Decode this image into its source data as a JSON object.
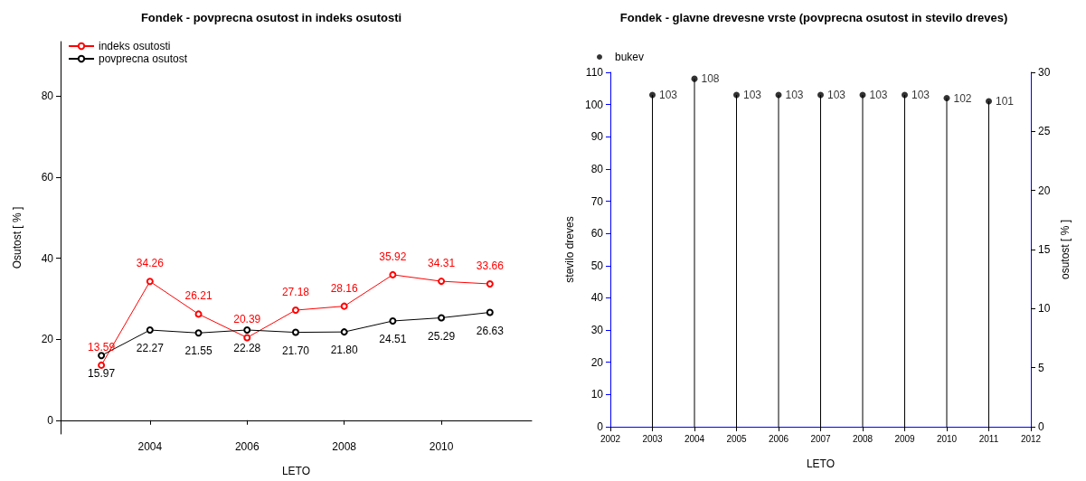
{
  "chart_data": [
    {
      "type": "line",
      "title": "Fondek - povprecna osutost in indeks osutosti",
      "xlabel": "LETO",
      "ylabel": "Osutost [ % ]",
      "x": [
        2003,
        2004,
        2005,
        2006,
        2007,
        2008,
        2009,
        2010,
        2011
      ],
      "xlim": [
        2002.16,
        2011.86
      ],
      "xticks": [
        2004,
        2006,
        2008,
        2010
      ],
      "ylim": [
        -3.4,
        93.5
      ],
      "yticks": [
        0,
        20,
        40,
        60,
        80
      ],
      "series": [
        {
          "name": "indeks osutosti",
          "color": "#ff0000",
          "values": [
            13.59,
            34.26,
            26.21,
            20.39,
            27.18,
            28.16,
            35.92,
            34.31,
            33.66
          ],
          "value_labels": [
            "13.59",
            "34.26",
            "26.21",
            "20.39",
            "27.18",
            "28.16",
            "35.92",
            "34.31",
            "33.66"
          ]
        },
        {
          "name": "povprecna osutost",
          "color": "#000000",
          "values": [
            15.97,
            22.27,
            21.55,
            22.28,
            21.7,
            21.8,
            24.51,
            25.29,
            26.63
          ],
          "value_labels": [
            "15.97",
            "22.27",
            "21.55",
            "22.28",
            "21.70",
            "21.80",
            "24.51",
            "25.29",
            "26.63"
          ]
        }
      ],
      "marker": "circle",
      "legend": "top left",
      "grid": false
    },
    {
      "type": "lollipop",
      "title": "Fondek - glavne drevesne vrste (povprecna osutost in stevilo dreves)",
      "xlabel": "LETO",
      "ylabel": "stevilo dreves",
      "y2label": "osutost [ % ]",
      "x": [
        2003,
        2004,
        2005,
        2006,
        2007,
        2008,
        2009,
        2010,
        2011
      ],
      "xlim": [
        2002,
        2012
      ],
      "xticks": [
        2002,
        2003,
        2004,
        2005,
        2006,
        2007,
        2008,
        2009,
        2010,
        2011,
        2012
      ],
      "ylim": [
        0,
        110
      ],
      "yticks": [
        0,
        10,
        20,
        30,
        40,
        50,
        60,
        70,
        80,
        90,
        100,
        110
      ],
      "y2lim": [
        0,
        30
      ],
      "y2ticks": [
        0,
        5,
        10,
        15,
        20,
        25,
        30
      ],
      "series": [
        {
          "name": "bukev",
          "color": "#000000",
          "values": [
            103,
            108,
            103,
            103,
            103,
            103,
            103,
            102,
            101
          ]
        }
      ],
      "data_labels": true,
      "legend": "top left",
      "grid": false
    }
  ]
}
